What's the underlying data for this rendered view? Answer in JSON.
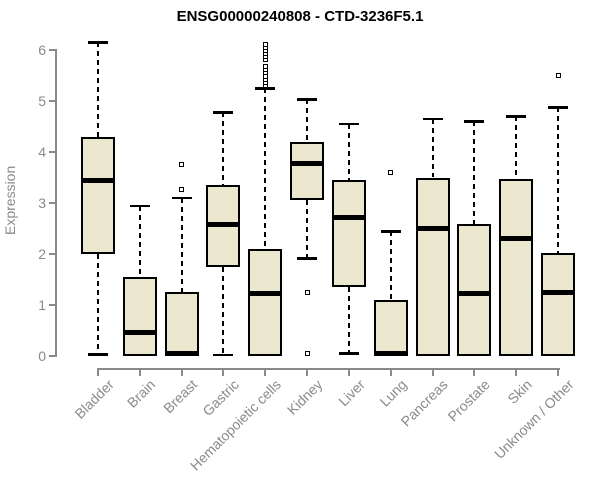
{
  "title": "ENSG00000240808 - CTD-3236F5.1",
  "y_axis": {
    "label": "Expression",
    "ticks": [
      0,
      1,
      2,
      3,
      4,
      5,
      6
    ]
  },
  "colors": {
    "box_fill": "#ece7cf",
    "box_border": "#000000",
    "whisker": "#000000",
    "axis": "#8a8a8a",
    "tick_label": "#8a8a8a",
    "title": "#000000",
    "background": "#ffffff"
  },
  "chart_data": {
    "type": "boxplot",
    "title": "ENSG00000240808 - CTD-3236F5.1",
    "xlabel": "",
    "ylabel": "Expression",
    "ylim": [
      0,
      6.3
    ],
    "yticks": [
      0,
      1,
      2,
      3,
      4,
      5,
      6
    ],
    "grid": false,
    "categories": [
      "Bladder",
      "Brain",
      "Breast",
      "Gastric",
      "Hematopoietic cells",
      "Kidney",
      "Liver",
      "Lung",
      "Pancreas",
      "Prostate",
      "Skin",
      "Unknown / Other"
    ],
    "series": [
      {
        "name": "Bladder",
        "whisker_low": 0.03,
        "q1": 2.0,
        "median": 3.45,
        "q3": 4.3,
        "whisker_high": 6.15,
        "outliers": []
      },
      {
        "name": "Brain",
        "whisker_low": 0.0,
        "q1": 0.0,
        "median": 0.47,
        "q3": 1.55,
        "whisker_high": 2.95,
        "outliers": []
      },
      {
        "name": "Breast",
        "whisker_low": 0.0,
        "q1": 0.0,
        "median": 0.05,
        "q3": 1.25,
        "whisker_high": 3.1,
        "outliers": [
          3.27,
          3.75
        ]
      },
      {
        "name": "Gastric",
        "whisker_low": 0.02,
        "q1": 1.75,
        "median": 2.57,
        "q3": 3.35,
        "whisker_high": 4.78,
        "outliers": []
      },
      {
        "name": "Hematopoietic cells",
        "whisker_low": 0.0,
        "q1": 0.0,
        "median": 1.22,
        "q3": 2.1,
        "whisker_high": 5.25,
        "outliers": [
          5.31,
          5.37,
          5.43,
          5.49,
          5.55,
          5.61,
          5.67,
          5.81,
          5.87,
          5.93,
          5.99,
          6.05,
          6.11
        ]
      },
      {
        "name": "Kidney",
        "whisker_low": 1.92,
        "q1": 3.06,
        "median": 3.78,
        "q3": 4.2,
        "whisker_high": 5.03,
        "outliers": [
          1.25,
          0.05
        ]
      },
      {
        "name": "Liver",
        "whisker_low": 0.05,
        "q1": 1.35,
        "median": 2.72,
        "q3": 3.45,
        "whisker_high": 4.55,
        "outliers": []
      },
      {
        "name": "Lung",
        "whisker_low": 0.0,
        "q1": 0.0,
        "median": 0.05,
        "q3": 1.1,
        "whisker_high": 2.45,
        "outliers": [
          3.6
        ]
      },
      {
        "name": "Pancreas",
        "whisker_low": 0.0,
        "q1": 0.0,
        "median": 2.5,
        "q3": 3.5,
        "whisker_high": 4.65,
        "outliers": []
      },
      {
        "name": "Prostate",
        "whisker_low": 0.0,
        "q1": 0.0,
        "median": 1.22,
        "q3": 2.58,
        "whisker_high": 4.6,
        "outliers": []
      },
      {
        "name": "Skin",
        "whisker_low": 0.0,
        "q1": 0.0,
        "median": 2.3,
        "q3": 3.47,
        "whisker_high": 4.7,
        "outliers": []
      },
      {
        "name": "Unknown / Other",
        "whisker_low": 0.0,
        "q1": 0.0,
        "median": 1.25,
        "q3": 2.02,
        "whisker_high": 4.88,
        "outliers": [
          5.5
        ]
      }
    ]
  }
}
